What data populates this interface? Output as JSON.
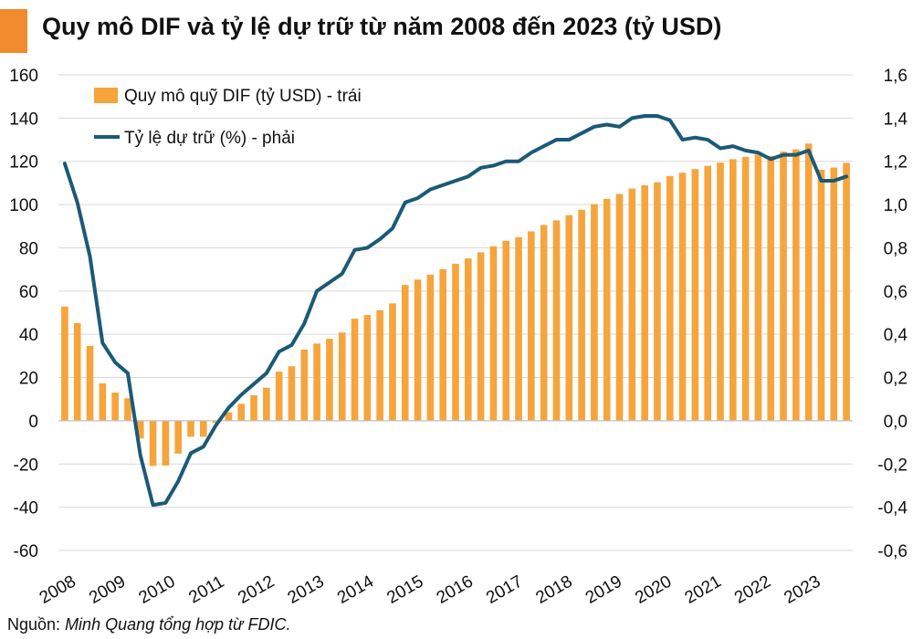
{
  "title": "Quy mô DIF và tỷ lệ dự trữ từ năm 2008 đến 2023 (tỷ USD)",
  "source": {
    "label": "Nguồn:",
    "text": "Minh Quang tổng hợp từ FDIC."
  },
  "colors": {
    "accent": "#f28a2e",
    "bar": "#f6a43c",
    "line": "#1b5a76",
    "grid": "#d9d9d9"
  },
  "chart_data": {
    "type": "bar+line",
    "legend": {
      "position": "top-left"
    },
    "x_tick_labels": [
      "2008",
      "2009",
      "2010",
      "2011",
      "2012",
      "2013",
      "2014",
      "2015",
      "2016",
      "2017",
      "2018",
      "2019",
      "2020",
      "2021",
      "2022",
      "2023"
    ],
    "left_axis": {
      "min": -60,
      "max": 160,
      "step": 20,
      "tick_labels": [
        "-60",
        "-40",
        "-20",
        "0",
        "20",
        "40",
        "60",
        "80",
        "100",
        "120",
        "140",
        "160"
      ]
    },
    "right_axis": {
      "min": -0.6,
      "max": 1.6,
      "step": 0.2,
      "tick_labels": [
        "-0,6",
        "-0,4",
        "-0,2",
        "0,0",
        "0,2",
        "0,4",
        "0,6",
        "0,8",
        "1,0",
        "1,2",
        "1,4",
        "1,6"
      ]
    },
    "series": [
      {
        "name": "Quy mô quỹ DIF (tỷ USD) - trái",
        "type": "bar",
        "axis": "left",
        "values": [
          52.8,
          45.2,
          34.6,
          17.3,
          13.0,
          10.4,
          -8.2,
          -20.9,
          -20.7,
          -15.2,
          -7.4,
          -7.4,
          -1.0,
          3.9,
          7.8,
          11.8,
          15.3,
          22.7,
          25.2,
          32.9,
          35.7,
          37.9,
          40.8,
          47.2,
          48.9,
          51.1,
          54.3,
          62.8,
          65.3,
          67.6,
          70.1,
          72.6,
          75.1,
          77.9,
          80.7,
          83.2,
          84.9,
          87.6,
          90.5,
          92.7,
          95.1,
          97.6,
          100.2,
          102.6,
          104.9,
          107.4,
          108.9,
          110.3,
          113.2,
          114.7,
          116.4,
          117.9,
          119.4,
          121.0,
          122.0,
          123.1,
          122.5,
          124.5,
          125.5,
          128.2,
          116.1,
          117.1,
          119.3
        ]
      },
      {
        "name": "Tỷ lệ dự trữ (%) - phải",
        "type": "line",
        "axis": "right",
        "values": [
          1.19,
          1.01,
          0.76,
          0.36,
          0.27,
          0.22,
          -0.16,
          -0.39,
          -0.38,
          -0.28,
          -0.15,
          -0.12,
          -0.02,
          0.06,
          0.12,
          0.17,
          0.22,
          0.32,
          0.35,
          0.45,
          0.6,
          0.64,
          0.68,
          0.79,
          0.8,
          0.84,
          0.89,
          1.01,
          1.03,
          1.07,
          1.09,
          1.11,
          1.13,
          1.17,
          1.18,
          1.2,
          1.2,
          1.24,
          1.27,
          1.3,
          1.3,
          1.33,
          1.36,
          1.37,
          1.36,
          1.4,
          1.41,
          1.41,
          1.39,
          1.3,
          1.31,
          1.3,
          1.26,
          1.27,
          1.25,
          1.24,
          1.21,
          1.23,
          1.23,
          1.25,
          1.11,
          1.11,
          1.13
        ]
      }
    ]
  }
}
